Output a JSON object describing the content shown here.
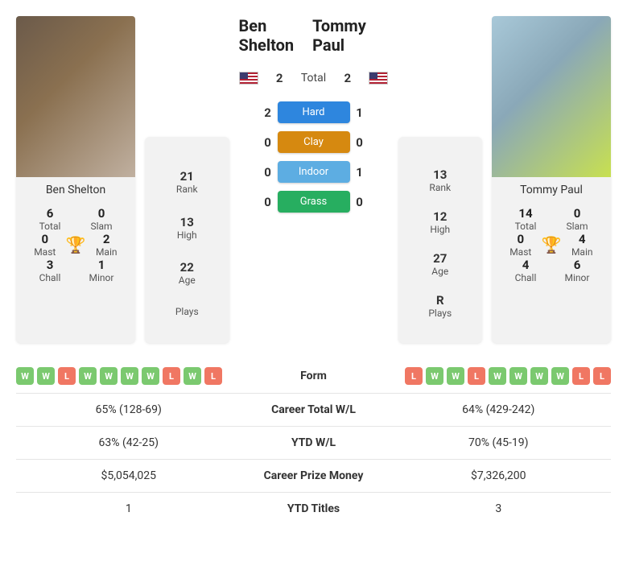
{
  "player1": {
    "name": "Ben Shelton",
    "flag": "us",
    "titles": {
      "total": {
        "n": "6",
        "l": "Total"
      },
      "slam": {
        "n": "0",
        "l": "Slam"
      },
      "mast": {
        "n": "0",
        "l": "Mast"
      },
      "main": {
        "n": "2",
        "l": "Main"
      },
      "chall": {
        "n": "3",
        "l": "Chall"
      },
      "minor": {
        "n": "1",
        "l": "Minor"
      }
    },
    "rank": {
      "rank": {
        "n": "21",
        "l": "Rank"
      },
      "high": {
        "n": "13",
        "l": "High"
      },
      "age": {
        "n": "22",
        "l": "Age"
      },
      "plays": {
        "n": "",
        "l": "Plays"
      }
    }
  },
  "player2": {
    "name": "Tommy Paul",
    "flag": "us",
    "titles": {
      "total": {
        "n": "14",
        "l": "Total"
      },
      "slam": {
        "n": "0",
        "l": "Slam"
      },
      "mast": {
        "n": "0",
        "l": "Mast"
      },
      "main": {
        "n": "4",
        "l": "Main"
      },
      "chall": {
        "n": "4",
        "l": "Chall"
      },
      "minor": {
        "n": "6",
        "l": "Minor"
      }
    },
    "rank": {
      "rank": {
        "n": "13",
        "l": "Rank"
      },
      "high": {
        "n": "12",
        "l": "High"
      },
      "age": {
        "n": "27",
        "l": "Age"
      },
      "plays": {
        "n": "R",
        "l": "Plays"
      }
    }
  },
  "h2h": {
    "total": {
      "p1": "2",
      "label": "Total",
      "p2": "2"
    },
    "surfaces": [
      {
        "p1": "2",
        "label": "Hard",
        "p2": "1",
        "color": "#2e86de"
      },
      {
        "p1": "0",
        "label": "Clay",
        "p2": "0",
        "color": "#d68910"
      },
      {
        "p1": "0",
        "label": "Indoor",
        "p2": "1",
        "color": "#5dade2"
      },
      {
        "p1": "0",
        "label": "Grass",
        "p2": "0",
        "color": "#27ae60"
      }
    ]
  },
  "form": {
    "label": "Form",
    "p1": [
      "W",
      "W",
      "L",
      "W",
      "W",
      "W",
      "W",
      "L",
      "W",
      "L"
    ],
    "p2": [
      "L",
      "W",
      "W",
      "L",
      "W",
      "W",
      "W",
      "W",
      "L",
      "L"
    ]
  },
  "stats": [
    {
      "p1": "65% (128-69)",
      "label": "Career Total W/L",
      "p2": "64% (429-242)"
    },
    {
      "p1": "63% (42-25)",
      "label": "YTD W/L",
      "p2": "70% (45-19)"
    },
    {
      "p1": "$5,054,025",
      "label": "Career Prize Money",
      "p2": "$7,326,200"
    },
    {
      "p1": "1",
      "label": "YTD Titles",
      "p2": "3"
    }
  ],
  "colors": {
    "win": "#7bc96f",
    "loss": "#f07763",
    "trophy": "#2980d9"
  }
}
